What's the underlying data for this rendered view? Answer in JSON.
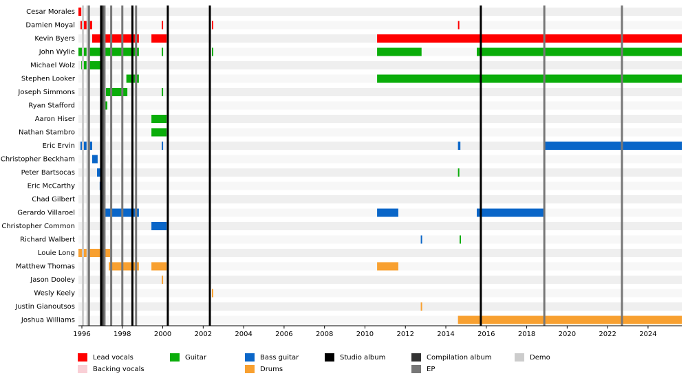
{
  "chart_data": {
    "type": "timeline",
    "roles": [
      {
        "name": "Lead vocals",
        "color": "#ff0000"
      },
      {
        "name": "Backing vocals",
        "color": "#f9cfd6"
      },
      {
        "name": "Guitar",
        "color": "#0aad0a"
      },
      {
        "name": "Bass guitar",
        "color": "#0a66c8"
      },
      {
        "name": "Drums",
        "color": "#f8a030"
      }
    ],
    "event_types": [
      {
        "name": "Studio album",
        "color": "#000000"
      },
      {
        "name": "Compilation album",
        "color": "#333333"
      },
      {
        "name": "EP",
        "color": "#777777"
      },
      {
        "name": "Demo",
        "color": "#cccccc"
      }
    ],
    "xlim": [
      1995.83,
      2025.67
    ],
    "xticks": [
      1996,
      1998,
      2000,
      2002,
      2004,
      2006,
      2008,
      2010,
      2012,
      2014,
      2016,
      2018,
      2020,
      2022,
      2024
    ],
    "members": [
      {
        "name": "Cesar Morales",
        "spans": [
          {
            "role": "Lead vocals",
            "start": 1995.83,
            "end": 1995.97
          }
        ]
      },
      {
        "name": "Damien Moyal",
        "spans": [
          {
            "role": "Lead vocals",
            "start": 1995.93,
            "end": 1996.51
          },
          {
            "role": "Lead vocals",
            "start": 1999.95,
            "end": 2000.0
          },
          {
            "role": "Lead vocals",
            "start": 2002.43,
            "end": 2002.48
          },
          {
            "role": "Lead vocals",
            "start": 2014.6,
            "end": 2014.65
          }
        ]
      },
      {
        "name": "Kevin Byers",
        "spans": [
          {
            "role": "Lead vocals",
            "start": 1996.51,
            "end": 1998.82
          },
          {
            "role": "Lead vocals",
            "start": 1999.44,
            "end": 2000.19
          },
          {
            "role": "Lead vocals",
            "start": 2010.6,
            "end": 2025.67
          }
        ]
      },
      {
        "name": "John Wylie",
        "spans": [
          {
            "role": "Guitar",
            "start": 1995.83,
            "end": 1998.82
          },
          {
            "role": "Guitar",
            "start": 1999.95,
            "end": 2000.0
          },
          {
            "role": "Guitar",
            "start": 2002.43,
            "end": 2002.48
          },
          {
            "role": "Guitar",
            "start": 2010.6,
            "end": 2012.8
          },
          {
            "role": "Guitar",
            "start": 2015.53,
            "end": 2025.67
          }
        ]
      },
      {
        "name": "Michael Wolz",
        "spans": [
          {
            "role": "Guitar",
            "start": 1995.97,
            "end": 1996.99
          }
        ]
      },
      {
        "name": "Stephen Looker",
        "spans": [
          {
            "role": "Guitar",
            "start": 1998.2,
            "end": 1998.82
          },
          {
            "role": "Guitar",
            "start": 2010.6,
            "end": 2025.67
          }
        ]
      },
      {
        "name": "Joseph Simmons",
        "spans": [
          {
            "role": "Guitar",
            "start": 1997.19,
            "end": 1998.25
          },
          {
            "role": "Guitar",
            "start": 1999.95,
            "end": 2000.0
          }
        ]
      },
      {
        "name": "Ryan Stafford",
        "spans": [
          {
            "role": "Guitar",
            "start": 1996.99,
            "end": 1997.26
          }
        ]
      },
      {
        "name": "Aaron Hiser",
        "spans": [
          {
            "role": "Guitar",
            "start": 1999.44,
            "end": 2000.19
          }
        ]
      },
      {
        "name": "Nathan Stambro",
        "spans": [
          {
            "role": "Guitar",
            "start": 1999.44,
            "end": 2000.19
          }
        ]
      },
      {
        "name": "Eric Ervin",
        "spans": [
          {
            "role": "Bass guitar",
            "start": 1995.93,
            "end": 1996.51
          },
          {
            "role": "Bass guitar",
            "start": 1999.95,
            "end": 2000.0
          },
          {
            "role": "Bass guitar",
            "start": 2014.6,
            "end": 2014.72
          },
          {
            "role": "Bass guitar",
            "start": 2018.87,
            "end": 2025.67
          }
        ]
      },
      {
        "name": "Christopher Beckham",
        "spans": [
          {
            "role": "Bass guitar",
            "start": 1996.51,
            "end": 1996.78
          }
        ]
      },
      {
        "name": "Peter Bartsocas",
        "spans": [
          {
            "role": "Bass guitar",
            "start": 1996.75,
            "end": 1996.92
          },
          {
            "role": "Guitar",
            "start": 2014.6,
            "end": 2014.65
          }
        ]
      },
      {
        "name": "Eric McCarthy",
        "spans": [
          {
            "role": "Bass guitar",
            "start": 1996.88,
            "end": 1997.02
          }
        ]
      },
      {
        "name": "Chad Gilbert",
        "spans": [
          {
            "role": "Bass guitar",
            "start": 1996.95,
            "end": 1997.02
          }
        ]
      },
      {
        "name": "Gerardo Villaroel",
        "spans": [
          {
            "role": "Bass guitar",
            "start": 1997.02,
            "end": 1998.82
          },
          {
            "role": "Bass guitar",
            "start": 2010.6,
            "end": 2011.65
          },
          {
            "role": "Bass guitar",
            "start": 2015.53,
            "end": 2018.83
          }
        ]
      },
      {
        "name": "Christopher Common",
        "spans": [
          {
            "role": "Bass guitar",
            "start": 1999.44,
            "end": 2000.19
          }
        ]
      },
      {
        "name": "Richard Walbert",
        "spans": [
          {
            "role": "Bass guitar",
            "start": 2012.76,
            "end": 2012.81
          },
          {
            "role": "Guitar",
            "start": 2014.68,
            "end": 2014.73
          }
        ]
      },
      {
        "name": "Louie Long",
        "spans": [
          {
            "role": "Drums",
            "start": 1995.83,
            "end": 1997.4
          }
        ]
      },
      {
        "name": "Matthew Thomas",
        "spans": [
          {
            "role": "Drums",
            "start": 1997.33,
            "end": 1998.82
          },
          {
            "role": "Drums",
            "start": 1999.44,
            "end": 2000.19
          },
          {
            "role": "Drums",
            "start": 2010.6,
            "end": 2011.65
          }
        ]
      },
      {
        "name": "Jason Dooley",
        "spans": [
          {
            "role": "Drums",
            "start": 1999.95,
            "end": 2000.0
          }
        ]
      },
      {
        "name": "Wesly Keely",
        "spans": [
          {
            "role": "Drums",
            "start": 2002.43,
            "end": 2002.48
          }
        ]
      },
      {
        "name": "Justin Gianoutsos",
        "spans": [
          {
            "role": "Drums",
            "start": 2012.76,
            "end": 2012.81
          }
        ]
      },
      {
        "name": "Joshua Williams",
        "spans": [
          {
            "role": "Drums",
            "start": 2014.6,
            "end": 2025.67
          }
        ]
      }
    ],
    "events": [
      {
        "type": "Demo",
        "x": 1996.05
      },
      {
        "type": "Demo",
        "x": 1996.28
      },
      {
        "type": "EP",
        "x": 1996.35
      },
      {
        "type": "Studio album",
        "x": 1996.95
      },
      {
        "type": "Compilation album",
        "x": 1997.05
      },
      {
        "type": "EP",
        "x": 1997.12
      },
      {
        "type": "EP",
        "x": 1997.45
      },
      {
        "type": "EP",
        "x": 1998.0
      },
      {
        "type": "Studio album",
        "x": 1998.5
      },
      {
        "type": "EP",
        "x": 1998.68
      },
      {
        "type": "Studio album",
        "x": 2000.25
      },
      {
        "type": "Studio album",
        "x": 2002.33
      },
      {
        "type": "Studio album",
        "x": 2015.73
      },
      {
        "type": "EP",
        "x": 2018.87
      },
      {
        "type": "EP",
        "x": 2022.71
      }
    ]
  }
}
